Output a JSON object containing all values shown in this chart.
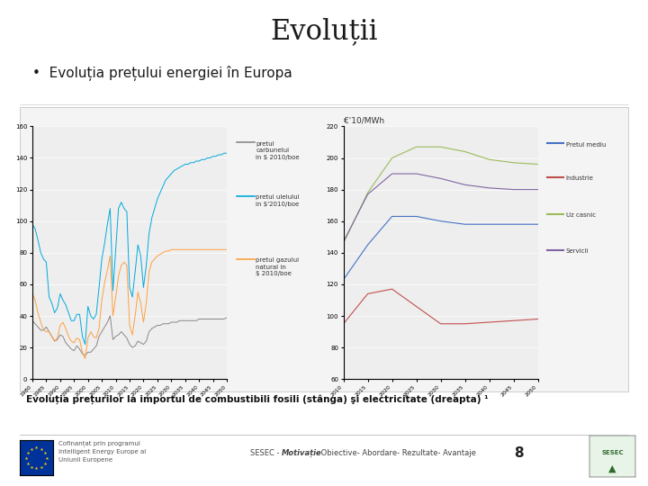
{
  "title": "Evoluții",
  "bullet_text": "Evoluția prețului energiei în Europa",
  "caption": "Evoluția prețurilor la importul de combustibili fosili (stânga) şi electricitate (dreapta) ¹",
  "footer_center_pre": "SESEC - ",
  "footer_center_bold": "Motivație",
  "footer_center_post": "- Obiective- Abordare- Rezultate- Avantaje",
  "footer_right_num": "8",
  "footer_left_line1": "Cofinanțat prin programul",
  "footer_left_line2": "Intelligent Energy Europe al",
  "footer_left_line3": "Uniunii Europene",
  "bg_color": "#ffffff",
  "left_chart": {
    "ylim": [
      0,
      160
    ],
    "yticks": [
      0,
      20,
      40,
      60,
      80,
      100,
      120,
      140,
      160
    ],
    "bg_color": "#eeeeee",
    "legend": [
      {
        "label": "pretul\ncarbunelui\nin $ 2010/boe",
        "color": "#888888"
      },
      {
        "label": "pretul uleiului\nin $'2010/boe",
        "color": "#00aadd"
      },
      {
        "label": "pretul gazului\nnatural in\n$ 2010/boe",
        "color": "#ffa040"
      }
    ],
    "series_coal": {
      "color": "#888888",
      "x": [
        1980,
        1981,
        1982,
        1983,
        1984,
        1985,
        1986,
        1987,
        1988,
        1989,
        1990,
        1991,
        1992,
        1993,
        1994,
        1995,
        1996,
        1997,
        1998,
        1999,
        2000,
        2001,
        2002,
        2003,
        2004,
        2005,
        2006,
        2007,
        2008,
        2009,
        2010,
        2011,
        2012,
        2013,
        2014,
        2015,
        2016,
        2017,
        2018,
        2019,
        2020,
        2021,
        2022,
        2023,
        2024,
        2025,
        2026,
        2027,
        2028,
        2029,
        2030,
        2031,
        2032,
        2033,
        2034,
        2035,
        2036,
        2037,
        2038,
        2039,
        2040,
        2041,
        2042,
        2043,
        2044,
        2045,
        2046,
        2047,
        2048,
        2049,
        2050
      ],
      "y": [
        37,
        35,
        33,
        31,
        31,
        33,
        30,
        27,
        24,
        25,
        28,
        27,
        23,
        21,
        19,
        18,
        21,
        19,
        16,
        15,
        17,
        17,
        19,
        21,
        27,
        30,
        33,
        36,
        40,
        25,
        27,
        28,
        30,
        28,
        26,
        22,
        20,
        21,
        24,
        23,
        22,
        24,
        30,
        32,
        33,
        34,
        34,
        35,
        35,
        35,
        36,
        36,
        36,
        37,
        37,
        37,
        37,
        37,
        37,
        37,
        38,
        38,
        38,
        38,
        38,
        38,
        38,
        38,
        38,
        38,
        39
      ]
    },
    "series_oil": {
      "color": "#00aadd",
      "x": [
        1980,
        1981,
        1982,
        1983,
        1984,
        1985,
        1986,
        1987,
        1988,
        1989,
        1990,
        1991,
        1992,
        1993,
        1994,
        1995,
        1996,
        1997,
        1998,
        1999,
        2000,
        2001,
        2002,
        2003,
        2004,
        2005,
        2006,
        2007,
        2008,
        2009,
        2010,
        2011,
        2012,
        2013,
        2014,
        2015,
        2016,
        2017,
        2018,
        2019,
        2020,
        2021,
        2022,
        2023,
        2024,
        2025,
        2026,
        2027,
        2028,
        2029,
        2030,
        2031,
        2032,
        2033,
        2034,
        2035,
        2036,
        2037,
        2038,
        2039,
        2040,
        2041,
        2042,
        2043,
        2044,
        2045,
        2046,
        2047,
        2048,
        2049,
        2050
      ],
      "y": [
        98,
        95,
        88,
        80,
        76,
        74,
        52,
        48,
        42,
        45,
        54,
        50,
        47,
        42,
        37,
        37,
        41,
        41,
        27,
        22,
        46,
        40,
        38,
        41,
        58,
        76,
        86,
        98,
        108,
        56,
        82,
        108,
        112,
        108,
        106,
        58,
        52,
        68,
        85,
        78,
        58,
        72,
        92,
        102,
        108,
        114,
        118,
        122,
        126,
        128,
        130,
        132,
        133,
        134,
        135,
        136,
        136,
        137,
        137,
        138,
        138,
        139,
        139,
        140,
        140,
        141,
        141,
        142,
        142,
        143,
        143
      ]
    },
    "series_gas": {
      "color": "#ffa040",
      "x": [
        1980,
        1981,
        1982,
        1983,
        1984,
        1985,
        1986,
        1987,
        1988,
        1989,
        1990,
        1991,
        1992,
        1993,
        1994,
        1995,
        1996,
        1997,
        1998,
        1999,
        2000,
        2001,
        2002,
        2003,
        2004,
        2005,
        2006,
        2007,
        2008,
        2009,
        2010,
        2011,
        2012,
        2013,
        2014,
        2015,
        2016,
        2017,
        2018,
        2019,
        2020,
        2021,
        2022,
        2023,
        2024,
        2025,
        2026,
        2027,
        2028,
        2029,
        2030,
        2031,
        2032,
        2033,
        2034,
        2035,
        2036,
        2037,
        2038,
        2039,
        2040,
        2041,
        2042,
        2043,
        2044,
        2045,
        2046,
        2047,
        2048,
        2049,
        2050
      ],
      "y": [
        54,
        50,
        42,
        36,
        31,
        30,
        30,
        27,
        24,
        26,
        34,
        36,
        32,
        27,
        24,
        23,
        26,
        25,
        17,
        13,
        26,
        30,
        27,
        26,
        32,
        50,
        61,
        69,
        78,
        40,
        52,
        65,
        72,
        74,
        72,
        34,
        28,
        40,
        55,
        48,
        36,
        48,
        68,
        74,
        76,
        78,
        79,
        80,
        81,
        81,
        82,
        82,
        82,
        82,
        82,
        82,
        82,
        82,
        82,
        82,
        82,
        82,
        82,
        82,
        82,
        82,
        82,
        82,
        82,
        82,
        82
      ]
    }
  },
  "right_chart": {
    "title": "€'10/MWh",
    "ylim": [
      60,
      220
    ],
    "yticks": [
      60,
      80,
      100,
      120,
      140,
      160,
      180,
      200,
      220
    ],
    "bg_color": "#eeeeee",
    "legend": [
      {
        "label": "Pretul mediu",
        "color": "#4472c4"
      },
      {
        "label": "Industrie",
        "color": "#c0504d"
      },
      {
        "label": "Uz casnic",
        "color": "#9bbb59"
      },
      {
        "label": "Servicii",
        "color": "#8064a2"
      }
    ],
    "series_pretul_mediu": {
      "color": "#4472c4",
      "x": [
        2010,
        2015,
        2020,
        2025,
        2030,
        2035,
        2040,
        2045,
        2050
      ],
      "y": [
        123,
        145,
        163,
        163,
        160,
        158,
        158,
        158,
        158
      ]
    },
    "series_industrie": {
      "color": "#c0504d",
      "x": [
        2010,
        2015,
        2020,
        2025,
        2030,
        2035,
        2040,
        2045,
        2050
      ],
      "y": [
        95,
        114,
        117,
        106,
        95,
        95,
        96,
        97,
        98
      ]
    },
    "series_uz_casnic": {
      "color": "#9bbb59",
      "x": [
        2010,
        2015,
        2020,
        2025,
        2030,
        2035,
        2040,
        2045,
        2050
      ],
      "y": [
        146,
        178,
        200,
        207,
        207,
        204,
        199,
        197,
        196
      ]
    },
    "series_servicii": {
      "color": "#8064a2",
      "x": [
        2010,
        2015,
        2020,
        2025,
        2030,
        2035,
        2040,
        2045,
        2050
      ],
      "y": [
        147,
        177,
        190,
        190,
        187,
        183,
        181,
        180,
        180
      ]
    }
  }
}
